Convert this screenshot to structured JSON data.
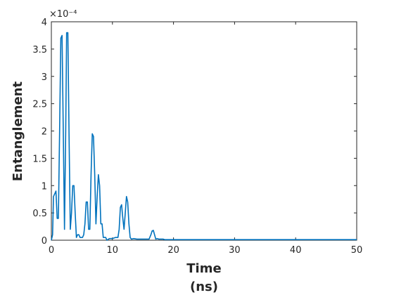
{
  "chart_data": {
    "type": "line",
    "title": "",
    "xlabel": [
      "Time",
      "(ns)"
    ],
    "ylabel": "Entanglement",
    "xlim": [
      0,
      50
    ],
    "ylim": [
      0,
      0.0004
    ],
    "x_ticks": [
      "0",
      "10",
      "20",
      "30",
      "40",
      "50"
    ],
    "y_ticks": [
      "0",
      "0.5",
      "1",
      "1.5",
      "2",
      "2.5",
      "3",
      "3.5",
      "4"
    ],
    "y_exponent": "×10⁻⁴",
    "grid": false,
    "line_color": "#0072BD",
    "series": [
      {
        "x": [
          0,
          0.2,
          0.35,
          0.55,
          0.75,
          0.95,
          1.15,
          1.35,
          1.55,
          1.75,
          1.95,
          2.15,
          2.35,
          2.5,
          2.7,
          2.9,
          3.1,
          3.3,
          3.5,
          3.7,
          3.9,
          4.1,
          4.3,
          4.5,
          4.7,
          4.9,
          5.1,
          5.3,
          5.5,
          5.7,
          5.9,
          6.1,
          6.3,
          6.5,
          6.7,
          6.9,
          7.1,
          7.3,
          7.5,
          7.7,
          7.9,
          8.1,
          8.3,
          8.5,
          8.7,
          8.9,
          9.1,
          9.5,
          10,
          10.5,
          10.9,
          11.1,
          11.3,
          11.5,
          11.7,
          11.9,
          12.1,
          12.3,
          12.5,
          12.7,
          12.9,
          13.1,
          13.5,
          14,
          15,
          16,
          16.3,
          16.5,
          16.7,
          16.9,
          17.1,
          17.3,
          17.6,
          18,
          18.3,
          18.6,
          19,
          20,
          30,
          40,
          50
        ],
        "y": [
          0,
          1e-05,
          8e-05,
          8.5e-05,
          9e-05,
          4e-05,
          4e-05,
          0.0002,
          0.00037,
          0.000375,
          0.0002,
          2e-05,
          0.0002,
          0.00038,
          0.00038,
          0.00019,
          2e-05,
          5e-05,
          0.0001,
          0.0001,
          5e-05,
          5e-06,
          1e-05,
          1e-05,
          5e-06,
          5e-06,
          5e-06,
          1e-05,
          3e-05,
          7e-05,
          7e-05,
          2e-05,
          2e-05,
          0.00012,
          0.000195,
          0.00019,
          0.00012,
          3e-05,
          8e-05,
          0.00012,
          0.0001,
          3e-05,
          3e-05,
          5e-06,
          5e-06,
          5e-06,
          0,
          3e-06,
          3e-06,
          5e-06,
          5e-06,
          2e-05,
          6e-05,
          6.5e-05,
          4e-05,
          2e-05,
          5e-05,
          8e-05,
          7e-05,
          3e-05,
          5e-06,
          2e-06,
          3e-06,
          2e-06,
          2e-06,
          2e-06,
          1e-05,
          1.7e-05,
          1.8e-05,
          1e-05,
          2e-06,
          3e-06,
          2e-06,
          2e-06,
          2e-06,
          1e-06,
          1e-06,
          1e-06,
          1e-06,
          1e-06,
          1e-06
        ]
      }
    ]
  }
}
